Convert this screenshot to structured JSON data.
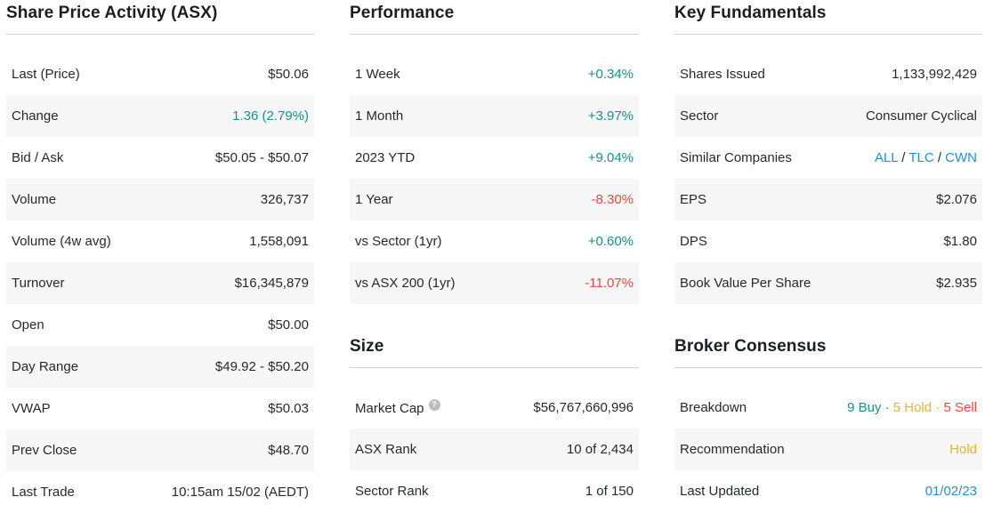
{
  "colors": {
    "positive": "#0e9688",
    "negative": "#f2453d",
    "hold": "#e9b32d",
    "link": "#1f8fdb",
    "default_text": "#26292c",
    "stripe_bg": "#f7f7f8",
    "divider": "#d2d2d2"
  },
  "columns": [
    {
      "sections": [
        {
          "title": "Share Price Activity (ASX)",
          "rows": [
            {
              "label": "Last (Price)",
              "value": "$50.06"
            },
            {
              "label": "Change",
              "value": "1.36 (2.79%)",
              "color": "positive"
            },
            {
              "label": "Bid / Ask",
              "value": "$50.05 - $50.07"
            },
            {
              "label": "Volume",
              "value": "326,737"
            },
            {
              "label": "Volume (4w avg)",
              "value": "1,558,091"
            },
            {
              "label": "Turnover",
              "value": "$16,345,879"
            },
            {
              "label": "Open",
              "value": "$50.00"
            },
            {
              "label": "Day Range",
              "value": "$49.92 - $50.20"
            },
            {
              "label": "VWAP",
              "value": "$50.03"
            },
            {
              "label": "Prev Close",
              "value": "$48.70"
            },
            {
              "label": "Last Trade",
              "value": "10:15am 15/02 (AEDT)"
            }
          ]
        }
      ]
    },
    {
      "sections": [
        {
          "title": "Performance",
          "rows": [
            {
              "label": "1 Week",
              "value": "+0.34%",
              "color": "positive"
            },
            {
              "label": "1 Month",
              "value": "+3.97%",
              "color": "positive"
            },
            {
              "label": "2023 YTD",
              "value": "+9.04%",
              "color": "positive"
            },
            {
              "label": "1 Year",
              "value": "-8.30%",
              "color": "negative"
            },
            {
              "label": "vs Sector (1yr)",
              "value": "+0.60%",
              "color": "positive"
            },
            {
              "label": "vs ASX 200 (1yr)",
              "value": "-11.07%",
              "color": "negative"
            }
          ]
        },
        {
          "title": "Size",
          "rows": [
            {
              "label": "Market Cap",
              "help_icon": true,
              "value": "$56,767,660,996"
            },
            {
              "label": "ASX Rank",
              "value": "10 of 2,434"
            },
            {
              "label": "Sector Rank",
              "value": "1 of 150"
            }
          ]
        }
      ]
    },
    {
      "sections": [
        {
          "title": "Key Fundamentals",
          "rows": [
            {
              "label": "Shares Issued",
              "value": "1,133,992,429"
            },
            {
              "label": "Sector",
              "value": "Consumer Cyclical"
            },
            {
              "label": "Similar Companies",
              "parts": [
                {
                  "text": "ALL",
                  "color": "link",
                  "interactable": true,
                  "name": "similar-company-link-all"
                },
                {
                  "text": " / "
                },
                {
                  "text": "TLC",
                  "color": "link",
                  "interactable": true,
                  "name": "similar-company-link-tlc"
                },
                {
                  "text": " / "
                },
                {
                  "text": "CWN",
                  "color": "link",
                  "interactable": true,
                  "name": "similar-company-link-cwn"
                }
              ]
            },
            {
              "label": "EPS",
              "value": "$2.076"
            },
            {
              "label": "DPS",
              "value": "$1.80"
            },
            {
              "label": "Book Value Per Share",
              "value": "$2.935"
            }
          ]
        },
        {
          "title": "Broker Consensus",
          "rows": [
            {
              "label": "Breakdown",
              "parts": [
                {
                  "text": "9 Buy",
                  "color": "positive",
                  "name": "buy-count"
                },
                {
                  "text": " · ",
                  "color": "positive",
                  "name": "dot-separator"
                },
                {
                  "text": "5 Hold",
                  "color": "hold",
                  "name": "hold-count"
                },
                {
                  "text": " · ",
                  "color": "hold",
                  "name": "dot-separator"
                },
                {
                  "text": "5 Sell",
                  "color": "negative",
                  "name": "sell-count"
                }
              ]
            },
            {
              "label": "Recommendation",
              "value": "Hold",
              "color": "hold"
            },
            {
              "label": "Last Updated",
              "value": "01/02/23",
              "color": "link"
            }
          ]
        }
      ]
    }
  ]
}
